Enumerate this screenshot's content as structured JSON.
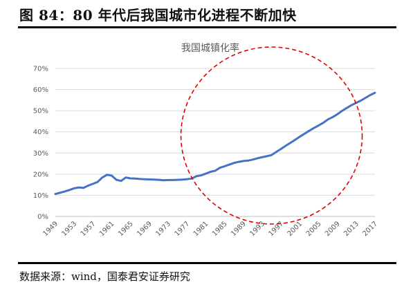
{
  "figure": {
    "title": "图 84：80 年代后我国城市化进程不断加快",
    "source": "数据来源：wind，国泰君安证券研究"
  },
  "chart_data": {
    "type": "line",
    "title": "我国城镇化率",
    "xlabel": "",
    "ylabel": "",
    "xlim": [
      1949,
      2017
    ],
    "ylim": [
      0,
      70
    ],
    "y_ticks": [
      "0%",
      "10%",
      "20%",
      "30%",
      "40%",
      "50%",
      "60%",
      "70%"
    ],
    "x_ticks": [
      "1949",
      "1953",
      "1957",
      "1961",
      "1965",
      "1969",
      "1973",
      "1977",
      "1981",
      "1985",
      "1989",
      "1993",
      "1997",
      "2001",
      "2005",
      "2009",
      "2013",
      "2017"
    ],
    "grid": true,
    "legend": "none",
    "series": [
      {
        "color": "#4472C4",
        "x": [
          1949,
          1950,
          1951,
          1952,
          1953,
          1954,
          1955,
          1956,
          1957,
          1958,
          1959,
          1960,
          1961,
          1962,
          1963,
          1964,
          1965,
          1966,
          1967,
          1968,
          1969,
          1970,
          1971,
          1972,
          1973,
          1974,
          1975,
          1976,
          1977,
          1978,
          1979,
          1980,
          1981,
          1982,
          1983,
          1984,
          1985,
          1986,
          1987,
          1988,
          1989,
          1990,
          1991,
          1992,
          1993,
          1994,
          1995,
          1996,
          1997,
          1998,
          1999,
          2000,
          2001,
          2002,
          2003,
          2004,
          2005,
          2006,
          2007,
          2008,
          2009,
          2010,
          2011,
          2012,
          2013,
          2014,
          2015,
          2016,
          2017
        ],
        "values": [
          10.6,
          11.2,
          11.8,
          12.5,
          13.3,
          13.7,
          13.5,
          14.6,
          15.4,
          16.3,
          18.4,
          19.7,
          19.3,
          17.3,
          16.8,
          18.4,
          18.0,
          17.9,
          17.7,
          17.6,
          17.5,
          17.4,
          17.3,
          17.1,
          17.2,
          17.2,
          17.3,
          17.4,
          17.6,
          17.9,
          19.0,
          19.4,
          20.2,
          21.1,
          21.6,
          23.0,
          23.7,
          24.5,
          25.3,
          25.8,
          26.2,
          26.4,
          26.9,
          27.5,
          28.0,
          28.5,
          29.0,
          30.5,
          31.9,
          33.4,
          34.8,
          36.2,
          37.7,
          39.1,
          40.5,
          41.8,
          43.0,
          44.3,
          45.9,
          47.0,
          48.3,
          49.9,
          51.3,
          52.6,
          53.7,
          54.8,
          56.1,
          57.4,
          58.5
        ]
      }
    ],
    "annotation": {
      "shape": "dashed-circle",
      "color": "#e00000",
      "center_x": 1995,
      "center_y": 35
    }
  }
}
